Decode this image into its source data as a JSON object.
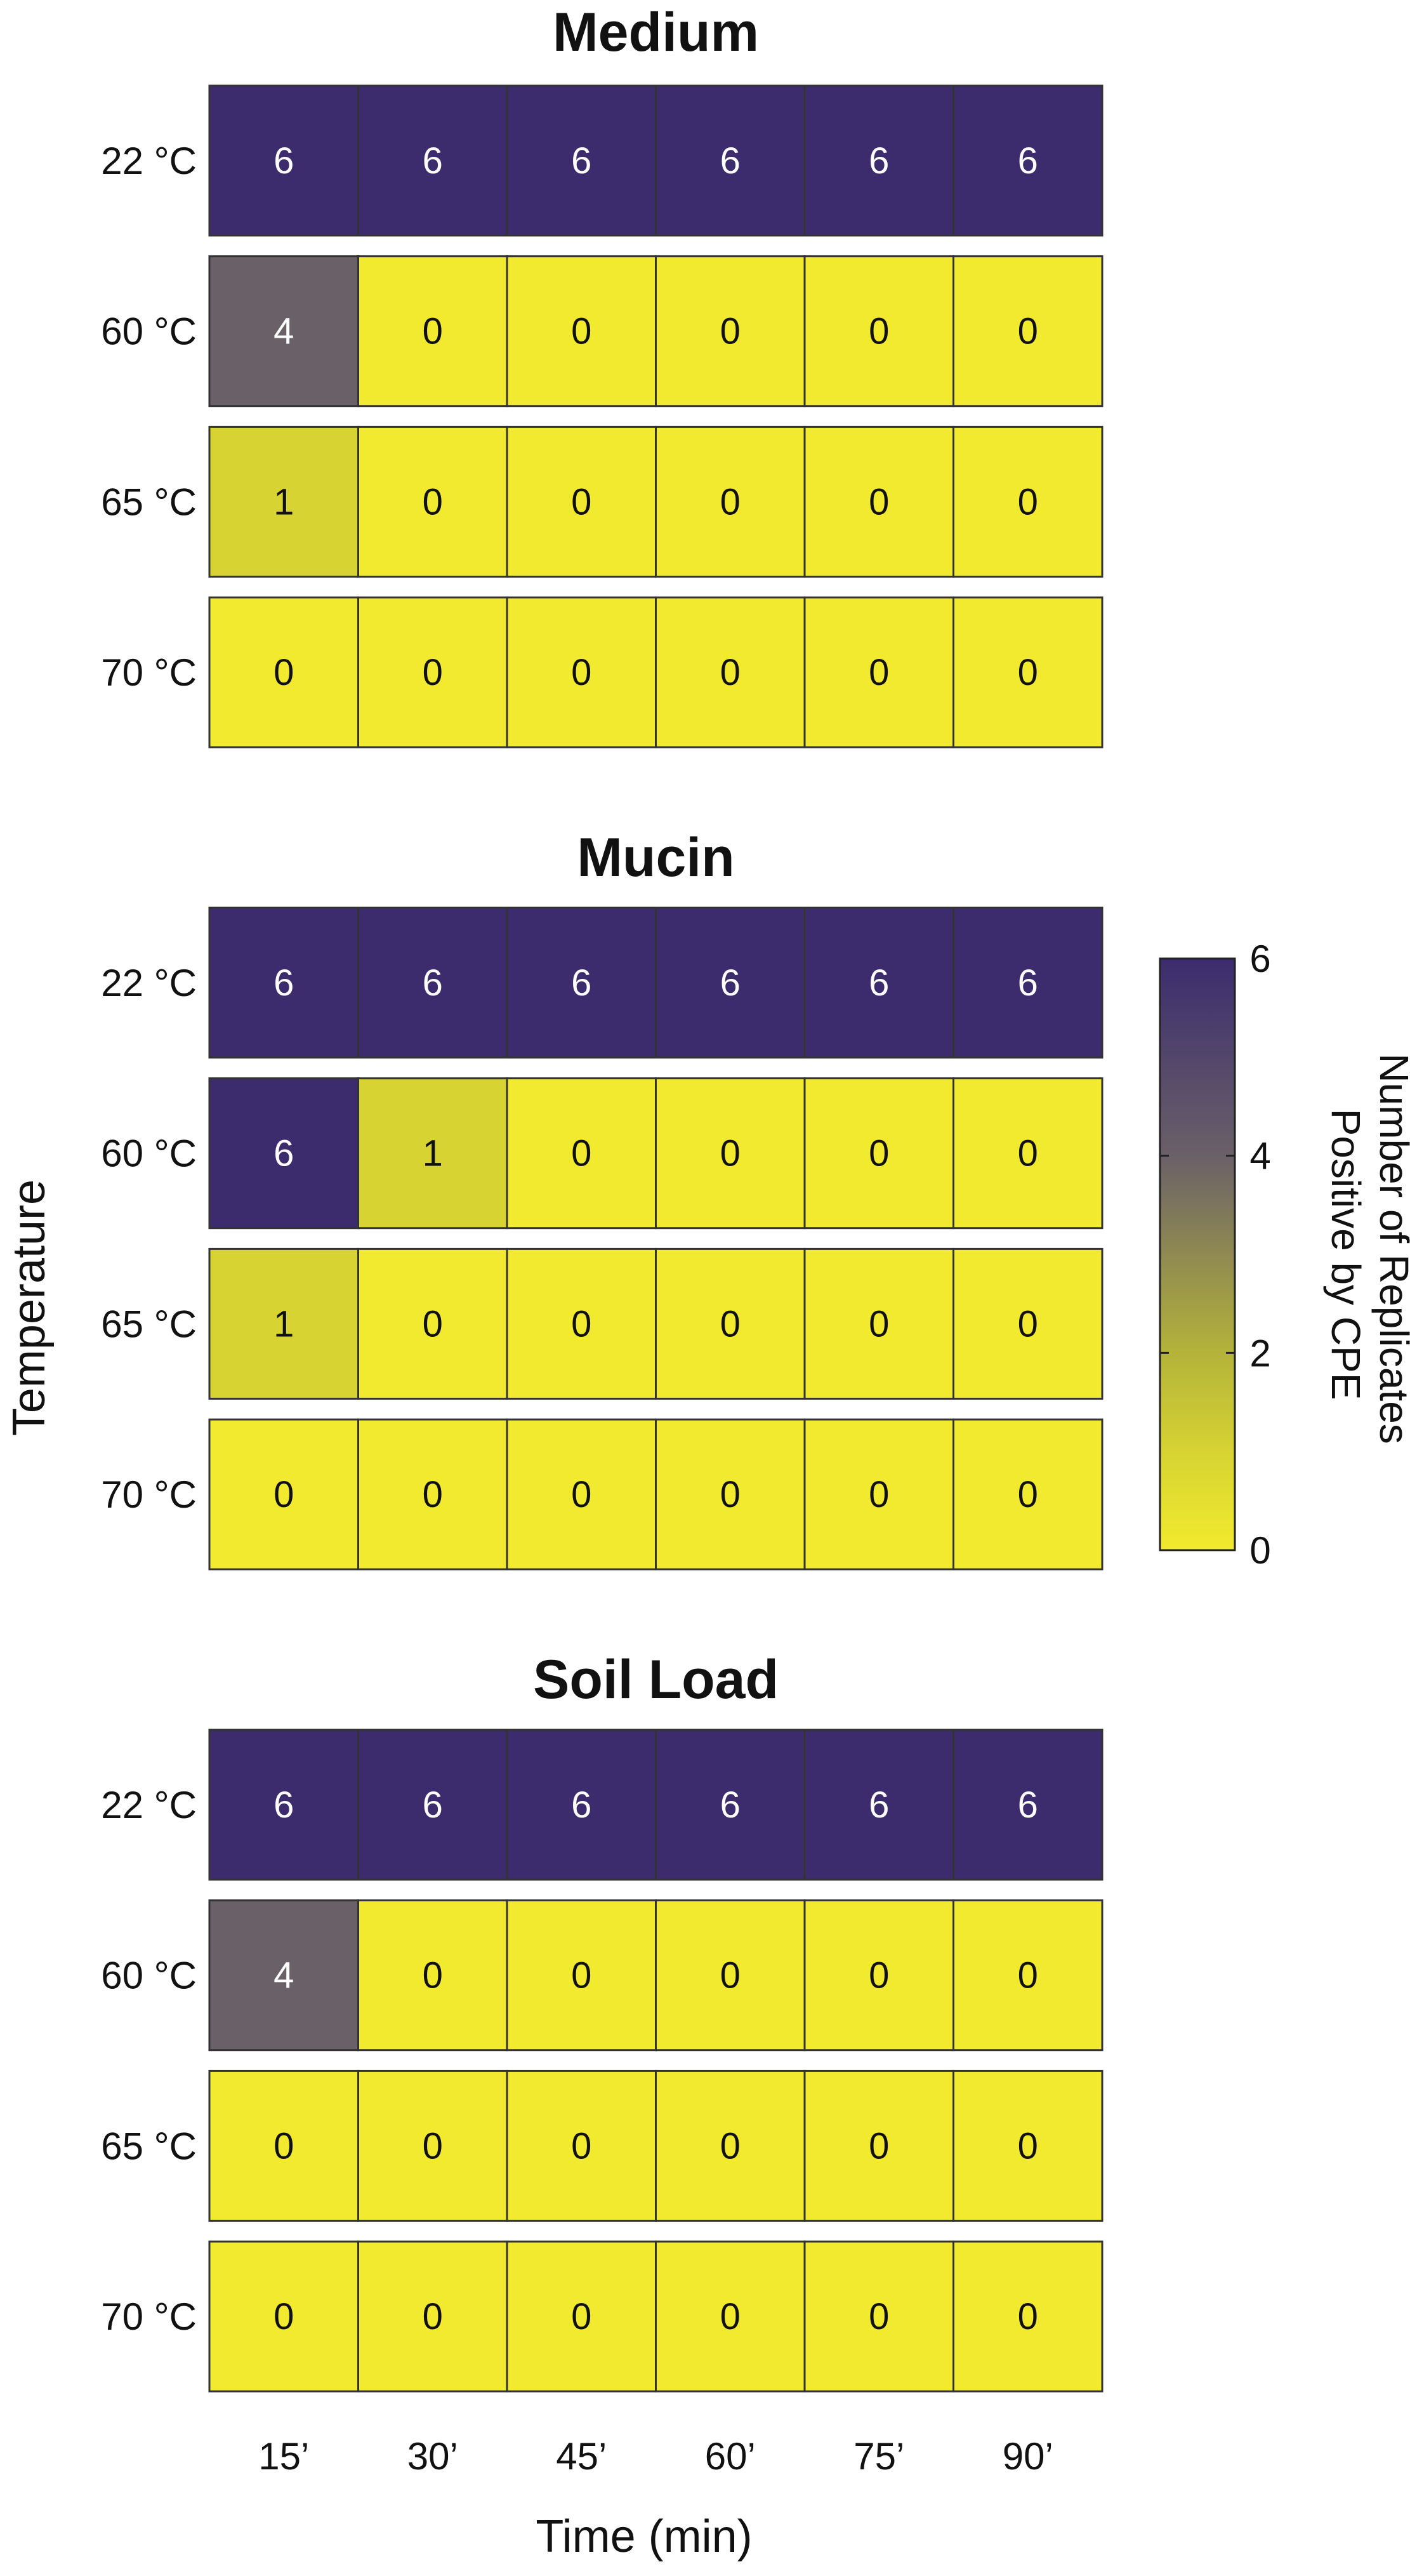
{
  "chart_data": {
    "type": "heatmap",
    "xlabel": "Time (min)",
    "ylabel": "Temperature",
    "x_categories": [
      "15’",
      "30’",
      "45’",
      "60’",
      "75’",
      "90’"
    ],
    "y_categories": [
      "22 °C",
      "60 °C",
      "65 °C",
      "70 °C"
    ],
    "panels": [
      {
        "title": "Medium",
        "values": [
          [
            6,
            6,
            6,
            6,
            6,
            6
          ],
          [
            4,
            0,
            0,
            0,
            0,
            0
          ],
          [
            1,
            0,
            0,
            0,
            0,
            0
          ],
          [
            0,
            0,
            0,
            0,
            0,
            0
          ]
        ]
      },
      {
        "title": "Mucin",
        "values": [
          [
            6,
            6,
            6,
            6,
            6,
            6
          ],
          [
            6,
            1,
            0,
            0,
            0,
            0
          ],
          [
            1,
            0,
            0,
            0,
            0,
            0
          ],
          [
            0,
            0,
            0,
            0,
            0,
            0
          ]
        ]
      },
      {
        "title": "Soil Load",
        "values": [
          [
            6,
            6,
            6,
            6,
            6,
            6
          ],
          [
            4,
            0,
            0,
            0,
            0,
            0
          ],
          [
            0,
            0,
            0,
            0,
            0,
            0
          ],
          [
            0,
            0,
            0,
            0,
            0,
            0
          ]
        ]
      }
    ],
    "colorbar": {
      "label_lines": [
        "Number of Replicates",
        "Positive by CPE"
      ],
      "min": 0,
      "max": 6,
      "ticks": [
        0,
        2,
        4,
        6
      ],
      "colors": {
        "0": "#f2ea2e",
        "1": "#d6d332",
        "2": "#b4b33a",
        "4": "#6a6068",
        "6": "#3c2c6e"
      }
    }
  }
}
